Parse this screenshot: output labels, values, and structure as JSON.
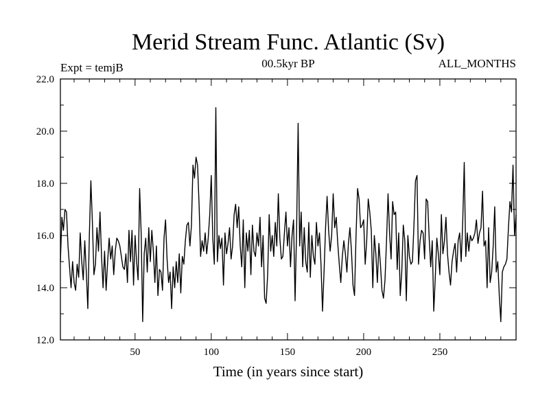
{
  "chart_data": {
    "type": "line",
    "title": "Merid Stream Func. Atlantic (Sv)",
    "subtitle_left": "Expt = temjB",
    "subtitle_center": "00.5kyr BP",
    "subtitle_right": "ALL_MONTHS",
    "xlabel": "Time (in years since start)",
    "ylabel": "",
    "xlim": [
      1,
      300
    ],
    "ylim": [
      12.0,
      22.0
    ],
    "xticks": [
      50,
      100,
      150,
      200,
      250
    ],
    "xtick_labels": [
      "50",
      "100",
      "150",
      "200",
      "250"
    ],
    "yticks": [
      12,
      14,
      16,
      18,
      20,
      22
    ],
    "ytick_labels": [
      "12.0",
      "14.0",
      "16.0",
      "18.0",
      "20.0",
      "22.0"
    ],
    "grid": false,
    "series": [
      {
        "name": "Merid Stream Func. Atlantic",
        "color": "#000000",
        "points": [
          [
            1,
            15.0
          ],
          [
            2,
            16.7
          ],
          [
            3,
            16.2
          ],
          [
            4,
            17.0
          ],
          [
            5,
            16.9
          ],
          [
            6,
            15.6
          ],
          [
            7,
            14.8
          ],
          [
            8,
            14.0
          ],
          [
            9,
            15.0
          ],
          [
            10,
            14.2
          ],
          [
            11,
            13.9
          ],
          [
            12,
            14.9
          ],
          [
            13,
            14.4
          ],
          [
            14,
            16.1
          ],
          [
            15,
            15.0
          ],
          [
            16,
            14.3
          ],
          [
            17,
            15.8
          ],
          [
            18,
            14.6
          ],
          [
            19,
            13.2
          ],
          [
            20,
            16.0
          ],
          [
            21,
            18.1
          ],
          [
            22,
            16.5
          ],
          [
            23,
            14.5
          ],
          [
            24,
            14.9
          ],
          [
            25,
            16.3
          ],
          [
            26,
            15.4
          ],
          [
            27,
            16.9
          ],
          [
            28,
            15.2
          ],
          [
            29,
            14.0
          ],
          [
            30,
            15.4
          ],
          [
            31,
            13.9
          ],
          [
            32,
            15.0
          ],
          [
            33,
            15.9
          ],
          [
            34,
            15.1
          ],
          [
            35,
            15.6
          ],
          [
            36,
            14.5
          ],
          [
            37,
            15.4
          ],
          [
            38,
            15.9
          ],
          [
            39,
            15.8
          ],
          [
            40,
            15.6
          ],
          [
            41,
            15.2
          ],
          [
            42,
            14.8
          ],
          [
            43,
            14.7
          ],
          [
            44,
            15.3
          ],
          [
            45,
            14.2
          ],
          [
            46,
            16.2
          ],
          [
            47,
            15.0
          ],
          [
            48,
            16.2
          ],
          [
            49,
            14.1
          ],
          [
            50,
            16.0
          ],
          [
            51,
            15.0
          ],
          [
            52,
            14.3
          ],
          [
            53,
            17.8
          ],
          [
            54,
            16.1
          ],
          [
            55,
            12.7
          ],
          [
            56,
            15.3
          ],
          [
            57,
            15.9
          ],
          [
            58,
            14.6
          ],
          [
            59,
            16.3
          ],
          [
            60,
            15.0
          ],
          [
            61,
            16.2
          ],
          [
            62,
            15.4
          ],
          [
            63,
            14.2
          ],
          [
            64,
            15.6
          ],
          [
            65,
            13.7
          ],
          [
            66,
            14.7
          ],
          [
            67,
            14.6
          ],
          [
            68,
            13.9
          ],
          [
            69,
            15.9
          ],
          [
            70,
            16.6
          ],
          [
            71,
            15.1
          ],
          [
            72,
            14.2
          ],
          [
            73,
            14.6
          ],
          [
            74,
            13.2
          ],
          [
            75,
            14.8
          ],
          [
            76,
            14.0
          ],
          [
            77,
            15.0
          ],
          [
            78,
            14.2
          ],
          [
            79,
            15.3
          ],
          [
            80,
            13.8
          ],
          [
            81,
            15.2
          ],
          [
            82,
            14.9
          ],
          [
            83,
            15.8
          ],
          [
            84,
            16.4
          ],
          [
            85,
            16.5
          ],
          [
            86,
            15.6
          ],
          [
            87,
            16.4
          ],
          [
            88,
            18.7
          ],
          [
            89,
            18.2
          ],
          [
            90,
            19.0
          ],
          [
            91,
            18.7
          ],
          [
            92,
            17.2
          ],
          [
            93,
            15.2
          ],
          [
            94,
            15.8
          ],
          [
            95,
            15.4
          ],
          [
            96,
            16.1
          ],
          [
            97,
            15.3
          ],
          [
            98,
            15.9
          ],
          [
            99,
            16.8
          ],
          [
            100,
            18.3
          ],
          [
            101,
            15.9
          ],
          [
            102,
            14.9
          ],
          [
            103,
            20.9
          ],
          [
            104,
            15.0
          ],
          [
            105,
            16.0
          ],
          [
            106,
            15.5
          ],
          [
            107,
            15.9
          ],
          [
            108,
            14.1
          ],
          [
            109,
            16.1
          ],
          [
            110,
            15.3
          ],
          [
            111,
            15.7
          ],
          [
            112,
            16.3
          ],
          [
            113,
            15.1
          ],
          [
            114,
            15.6
          ],
          [
            115,
            16.8
          ],
          [
            116,
            17.2
          ],
          [
            117,
            16.3
          ],
          [
            118,
            17.1
          ],
          [
            119,
            15.6
          ],
          [
            120,
            14.8
          ],
          [
            121,
            16.6
          ],
          [
            122,
            14.0
          ],
          [
            123,
            16.1
          ],
          [
            124,
            15.4
          ],
          [
            125,
            16.2
          ],
          [
            126,
            14.5
          ],
          [
            127,
            16.4
          ],
          [
            128,
            15.4
          ],
          [
            129,
            15.2
          ],
          [
            130,
            16.1
          ],
          [
            131,
            15.6
          ],
          [
            132,
            16.7
          ],
          [
            133,
            14.8
          ],
          [
            134,
            16.0
          ],
          [
            135,
            13.6
          ],
          [
            136,
            13.4
          ],
          [
            137,
            14.5
          ],
          [
            138,
            16.8
          ],
          [
            139,
            15.4
          ],
          [
            140,
            16.0
          ],
          [
            141,
            15.2
          ],
          [
            142,
            16.5
          ],
          [
            143,
            15.6
          ],
          [
            144,
            17.6
          ],
          [
            145,
            15.9
          ],
          [
            146,
            15.1
          ],
          [
            147,
            15.2
          ],
          [
            148,
            16.1
          ],
          [
            149,
            16.9
          ],
          [
            150,
            15.6
          ],
          [
            151,
            16.3
          ],
          [
            152,
            14.8
          ],
          [
            153,
            16.0
          ],
          [
            154,
            16.6
          ],
          [
            155,
            13.5
          ],
          [
            156,
            16.2
          ],
          [
            157,
            20.3
          ],
          [
            158,
            15.6
          ],
          [
            159,
            16.9
          ],
          [
            160,
            14.8
          ],
          [
            161,
            16.3
          ],
          [
            162,
            15.0
          ],
          [
            163,
            14.6
          ],
          [
            164,
            16.5
          ],
          [
            165,
            14.4
          ],
          [
            166,
            16.0
          ],
          [
            167,
            15.2
          ],
          [
            168,
            14.9
          ],
          [
            169,
            16.5
          ],
          [
            170,
            15.6
          ],
          [
            171,
            16.1
          ],
          [
            172,
            14.9
          ],
          [
            173,
            13.1
          ],
          [
            174,
            14.6
          ],
          [
            175,
            16.3
          ],
          [
            176,
            17.5
          ],
          [
            177,
            16.2
          ],
          [
            178,
            15.4
          ],
          [
            179,
            16.0
          ],
          [
            180,
            17.6
          ],
          [
            181,
            16.3
          ],
          [
            182,
            16.7
          ],
          [
            183,
            15.7
          ],
          [
            184,
            14.9
          ],
          [
            185,
            14.2
          ],
          [
            186,
            15.2
          ],
          [
            187,
            15.8
          ],
          [
            188,
            15.3
          ],
          [
            189,
            14.6
          ],
          [
            190,
            15.7
          ],
          [
            191,
            16.3
          ],
          [
            192,
            15.4
          ],
          [
            193,
            14.1
          ],
          [
            194,
            13.7
          ],
          [
            195,
            16.0
          ],
          [
            196,
            17.8
          ],
          [
            197,
            17.4
          ],
          [
            198,
            16.3
          ],
          [
            199,
            16.4
          ],
          [
            200,
            16.6
          ],
          [
            201,
            14.9
          ],
          [
            202,
            15.8
          ],
          [
            203,
            17.4
          ],
          [
            204,
            16.9
          ],
          [
            205,
            16.2
          ],
          [
            206,
            14.0
          ],
          [
            207,
            16.0
          ],
          [
            208,
            15.3
          ],
          [
            209,
            14.2
          ],
          [
            210,
            15.7
          ],
          [
            211,
            14.9
          ],
          [
            212,
            13.9
          ],
          [
            213,
            13.6
          ],
          [
            214,
            14.3
          ],
          [
            215,
            15.8
          ],
          [
            216,
            17.6
          ],
          [
            217,
            16.1
          ],
          [
            218,
            15.1
          ],
          [
            219,
            17.3
          ],
          [
            220,
            16.8
          ],
          [
            221,
            16.9
          ],
          [
            222,
            14.7
          ],
          [
            223,
            16.1
          ],
          [
            224,
            13.7
          ],
          [
            225,
            14.6
          ],
          [
            226,
            16.4
          ],
          [
            227,
            15.8
          ],
          [
            228,
            13.5
          ],
          [
            229,
            16.0
          ],
          [
            230,
            15.2
          ],
          [
            231,
            14.9
          ],
          [
            232,
            15.0
          ],
          [
            233,
            16.4
          ],
          [
            234,
            18.1
          ],
          [
            235,
            18.3
          ],
          [
            236,
            14.9
          ],
          [
            237,
            15.8
          ],
          [
            238,
            16.2
          ],
          [
            239,
            16.1
          ],
          [
            240,
            15.1
          ],
          [
            241,
            17.4
          ],
          [
            242,
            17.3
          ],
          [
            243,
            15.9
          ],
          [
            244,
            14.8
          ],
          [
            245,
            15.8
          ],
          [
            246,
            13.1
          ],
          [
            247,
            14.4
          ],
          [
            248,
            15.9
          ],
          [
            249,
            15.3
          ],
          [
            250,
            14.5
          ],
          [
            251,
            16.8
          ],
          [
            252,
            15.3
          ],
          [
            253,
            15.8
          ],
          [
            254,
            16.7
          ],
          [
            255,
            15.3
          ],
          [
            256,
            14.6
          ],
          [
            257,
            14.1
          ],
          [
            258,
            15.0
          ],
          [
            259,
            15.4
          ],
          [
            260,
            15.7
          ],
          [
            261,
            14.6
          ],
          [
            262,
            15.8
          ],
          [
            263,
            16.1
          ],
          [
            264,
            15.0
          ],
          [
            265,
            16.5
          ],
          [
            266,
            18.8
          ],
          [
            267,
            15.2
          ],
          [
            268,
            16.1
          ],
          [
            269,
            15.4
          ],
          [
            270,
            16.0
          ],
          [
            271,
            15.8
          ],
          [
            272,
            15.9
          ],
          [
            273,
            16.1
          ],
          [
            274,
            16.6
          ],
          [
            275,
            15.7
          ],
          [
            276,
            16.1
          ],
          [
            277,
            16.3
          ],
          [
            278,
            17.7
          ],
          [
            279,
            15.6
          ],
          [
            280,
            15.8
          ],
          [
            281,
            14.0
          ],
          [
            282,
            16.3
          ],
          [
            283,
            14.2
          ],
          [
            284,
            14.6
          ],
          [
            285,
            15.6
          ],
          [
            286,
            17.1
          ],
          [
            287,
            14.6
          ],
          [
            288,
            15.0
          ],
          [
            289,
            13.7
          ],
          [
            290,
            12.7
          ],
          [
            291,
            14.6
          ],
          [
            292,
            14.8
          ],
          [
            293,
            14.9
          ],
          [
            294,
            15.1
          ],
          [
            295,
            16.3
          ],
          [
            296,
            17.3
          ],
          [
            297,
            16.9
          ],
          [
            298,
            18.7
          ],
          [
            299,
            16.0
          ],
          [
            300,
            16.8
          ]
        ]
      }
    ]
  }
}
